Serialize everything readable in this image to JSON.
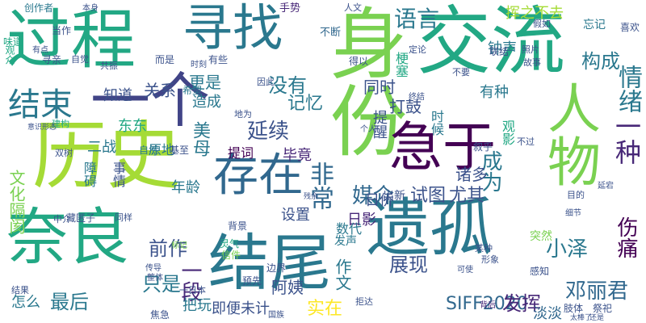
{
  "words": [
    {
      "text": "过程",
      "color": "#22a884"
    },
    {
      "text": "寻找",
      "color": "#2a788e"
    },
    {
      "text": "交流",
      "color": "#22a884"
    },
    {
      "text": "身份",
      "color": "#7ad151"
    },
    {
      "text": "一个",
      "color": "#414487"
    },
    {
      "text": "历史",
      "color": "#a5db36"
    },
    {
      "text": "遗孤",
      "color": "#2a788e"
    },
    {
      "text": "结尾",
      "color": "#2a788e"
    },
    {
      "text": "奈良",
      "color": "#22a884"
    },
    {
      "text": "急于",
      "color": "#440154"
    },
    {
      "text": "人物",
      "color": "#7ad151"
    },
    {
      "text": "存在",
      "color": "#31688e"
    },
    {
      "text": "结束",
      "color": "#2a788e"
    },
    {
      "text": "没有",
      "color": "#2a788e"
    },
    {
      "text": "情绪",
      "color": "#2a788e"
    },
    {
      "text": "语言",
      "color": "#2a788e"
    },
    {
      "text": "构成",
      "color": "#2a788e"
    },
    {
      "text": "一种",
      "color": "#482878"
    },
    {
      "text": "邓丽君",
      "color": "#31688e"
    },
    {
      "text": "非常",
      "color": "#31688e"
    },
    {
      "text": "媒介",
      "color": "#31688e"
    },
    {
      "text": "延续",
      "color": "#3b528b"
    },
    {
      "text": "SIFF2020",
      "color": "#31688e"
    },
    {
      "text": "伤痛",
      "color": "#440154"
    },
    {
      "text": "成为",
      "color": "#2a788e"
    },
    {
      "text": "最后",
      "color": "#2a788e"
    },
    {
      "text": "只是",
      "color": "#2a788e"
    },
    {
      "text": "前作",
      "color": "#3b528b"
    },
    {
      "text": "一段",
      "color": "#482878"
    },
    {
      "text": "文化隔阂",
      "color": "#7ad151"
    },
    {
      "text": "展现",
      "color": "#3b528b"
    },
    {
      "text": "发挥",
      "color": "#482878"
    },
    {
      "text": "小泽",
      "color": "#2a788e"
    },
    {
      "text": "日侨",
      "color": "#3b528b"
    },
    {
      "text": "试图",
      "color": "#3b528b"
    },
    {
      "text": "尤其",
      "color": "#3b528b"
    },
    {
      "text": "记忆",
      "color": "#2a788e"
    },
    {
      "text": "同时",
      "color": "#3b528b"
    },
    {
      "text": "打鼓",
      "color": "#3b528b"
    },
    {
      "text": "美母",
      "color": "#2a788e"
    },
    {
      "text": "毕竟",
      "color": "#482878"
    },
    {
      "text": "阿姨",
      "color": "#3b528b"
    },
    {
      "text": "实在",
      "color": "#fde725"
    },
    {
      "text": "作文",
      "color": "#2a788e"
    },
    {
      "text": "淡淡",
      "color": "#31688e"
    },
    {
      "text": "诸多",
      "color": "#3b528b"
    },
    {
      "text": "日影",
      "color": "#482878"
    },
    {
      "text": "更是",
      "color": "#2a788e"
    },
    {
      "text": "关系",
      "color": "#3b528b"
    },
    {
      "text": "知道",
      "color": "#3b528b"
    },
    {
      "text": "造成",
      "color": "#2a788e"
    },
    {
      "text": "挥之不去",
      "color": "#a5db36"
    },
    {
      "text": "钟声",
      "color": "#2a788e"
    },
    {
      "text": "东东",
      "color": "#22a884"
    },
    {
      "text": "二战",
      "color": "#2a788e"
    },
    {
      "text": "年龄",
      "color": "#2a788e"
    },
    {
      "text": "障碍",
      "color": "#2a788e"
    },
    {
      "text": "事情",
      "color": "#3b528b"
    },
    {
      "text": "提词",
      "color": "#440154"
    },
    {
      "text": "设置",
      "color": "#3b528b"
    },
    {
      "text": "怎么",
      "color": "#2a788e"
    },
    {
      "text": "把玩",
      "color": "#2a788e"
    },
    {
      "text": "即便",
      "color": "#3b528b"
    },
    {
      "text": "未计",
      "color": "#3b528b"
    },
    {
      "text": "有种",
      "color": "#2a788e"
    },
    {
      "text": "提醒",
      "color": "#3b528b"
    },
    {
      "text": "时候",
      "color": "#2a788e"
    },
    {
      "text": "观影",
      "color": "#22a884"
    },
    {
      "text": "创作者",
      "color": "#2a788e"
    },
    {
      "text": "不断",
      "color": "#31688e"
    },
    {
      "text": "味道",
      "color": "#22a884"
    },
    {
      "text": "当作",
      "color": "#3b528b"
    },
    {
      "text": "手势",
      "color": "#482878"
    },
    {
      "text": "而是",
      "color": "#3b528b"
    },
    {
      "text": "希望",
      "color": "#2a788e"
    },
    {
      "text": "原地",
      "color": "#2a788e"
    },
    {
      "text": "自然",
      "color": "#2a788e"
    },
    {
      "text": "基至",
      "color": "#3b528b"
    },
    {
      "text": "出新",
      "color": "#3b528b"
    },
    {
      "text": "数代",
      "color": "#2a788e"
    },
    {
      "text": "发声",
      "color": "#2a788e"
    },
    {
      "text": "背景",
      "color": "#3b528b"
    },
    {
      "text": "突然",
      "color": "#7ad151"
    },
    {
      "text": "感知",
      "color": "#3b528b"
    },
    {
      "text": "预先",
      "color": "#3b528b"
    },
    {
      "text": "边界",
      "color": "#3b528b"
    },
    {
      "text": "焦急",
      "color": "#3b528b"
    },
    {
      "text": "国族",
      "color": "#3b528b"
    },
    {
      "text": "肢体",
      "color": "#3b528b"
    },
    {
      "text": "祭祀",
      "color": "#3b528b"
    },
    {
      "text": "背后",
      "color": "#482878"
    },
    {
      "text": "联结",
      "color": "#3b528b"
    },
    {
      "text": "故事",
      "color": "#3b528b"
    },
    {
      "text": "照片",
      "color": "#3b528b"
    },
    {
      "text": "定论",
      "color": "#3b528b"
    },
    {
      "text": "得以",
      "color": "#3b528b"
    },
    {
      "text": "有些",
      "color": "#3b528b"
    },
    {
      "text": "时刻",
      "color": "#3b528b"
    },
    {
      "text": "共振",
      "color": "#3b528b"
    },
    {
      "text": "寻亲",
      "color": "#3b528b"
    },
    {
      "text": "观众",
      "color": "#22a884"
    },
    {
      "text": "自觉",
      "color": "#3b528b"
    },
    {
      "text": "喜欢",
      "color": "#3b528b"
    },
    {
      "text": "忘记",
      "color": "#2a788e"
    },
    {
      "text": "梗塞",
      "color": "#22a884"
    },
    {
      "text": "结果",
      "color": "#3b528b"
    },
    {
      "text": "中介",
      "color": "#3b528b"
    },
    {
      "text": "藏匿子",
      "color": "#3b528b"
    },
    {
      "text": "同样",
      "color": "#3b528b"
    },
    {
      "text": "整体",
      "color": "#3b528b"
    },
    {
      "text": "传导",
      "color": "#3b528b"
    },
    {
      "text": "信件",
      "color": "#7ad151"
    },
    {
      "text": "灵气",
      "color": "#22a884"
    },
    {
      "text": "人文",
      "color": "#3b528b"
    },
    {
      "text": "假如",
      "color": "#3b528b"
    },
    {
      "text": "本身",
      "color": "#3b528b"
    },
    {
      "text": "地为",
      "color": "#3b528b"
    },
    {
      "text": "因此",
      "color": "#3b528b"
    },
    {
      "text": "不过",
      "color": "#3b528b"
    },
    {
      "text": "叙乎",
      "color": "#3b528b"
    },
    {
      "text": "某种",
      "color": "#3b528b"
    },
    {
      "text": "形象",
      "color": "#3b528b"
    },
    {
      "text": "可使",
      "color": "#3b528b"
    },
    {
      "text": "拒达",
      "color": "#3b528b"
    },
    {
      "text": "目的",
      "color": "#3b528b"
    },
    {
      "text": "延宕",
      "color": "#3b528b"
    },
    {
      "text": "细节",
      "color": "#3b528b"
    },
    {
      "text": "双树",
      "color": "#3b528b"
    },
    {
      "text": "建构",
      "color": "#22a884"
    },
    {
      "text": "一日本",
      "color": "#3b528b"
    },
    {
      "text": "有点",
      "color": "#3b528b"
    },
    {
      "text": "终结",
      "color": "#3b528b"
    },
    {
      "text": "太棒了",
      "color": "#3b528b"
    },
    {
      "text": "还是",
      "color": "#3b528b"
    },
    {
      "text": "不要",
      "color": "#3b528b"
    },
    {
      "text": "个人",
      "color": "#3b528b"
    },
    {
      "text": "标记",
      "color": "#7ad151"
    },
    {
      "text": "残余",
      "color": "#3b528b"
    },
    {
      "text": "意识形态",
      "color": "#3b528b"
    }
  ]
}
